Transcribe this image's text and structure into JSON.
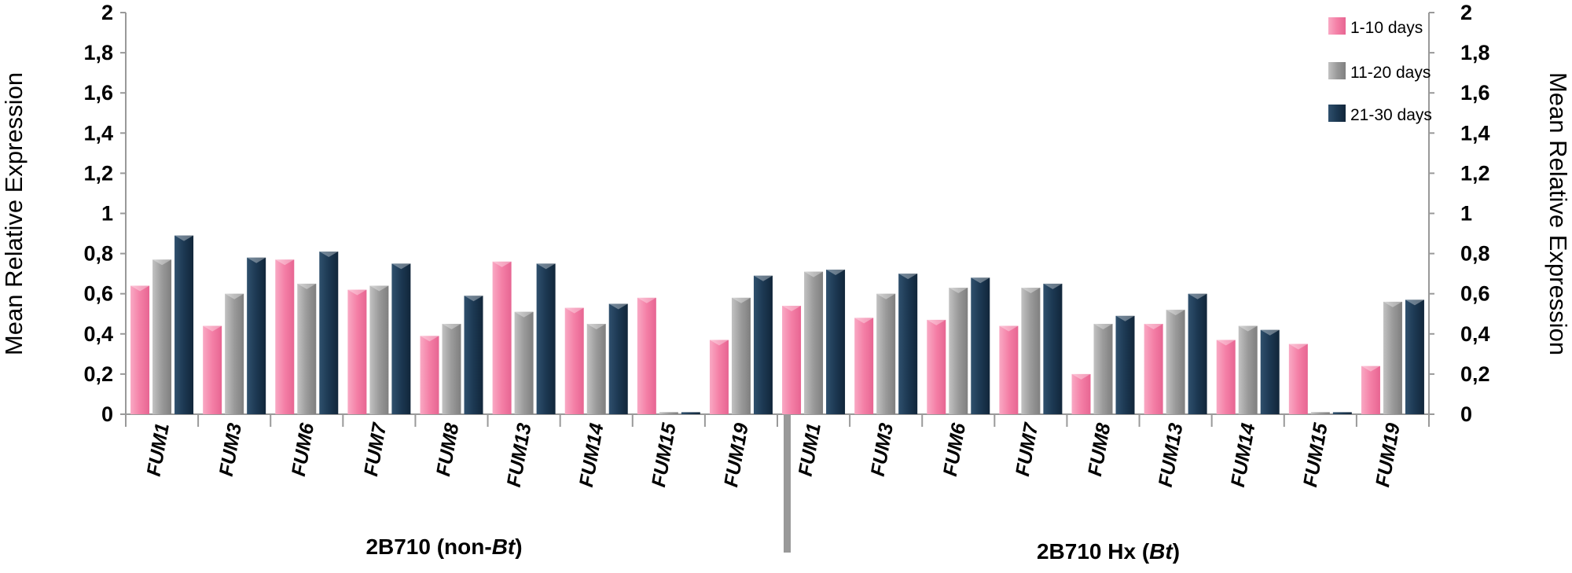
{
  "chart_data": {
    "type": "bar",
    "ylabel_left": "Mean Relative Expression",
    "ylabel_right": "Mean Relative Expression",
    "ylim": [
      0,
      2
    ],
    "ytick_values": [
      0,
      0.2,
      0.4,
      0.6,
      0.8,
      1,
      1.2,
      1.4,
      1.6,
      1.8,
      2
    ],
    "ytick_labels": [
      "0",
      "0,2",
      "0,4",
      "0,6",
      "0,8",
      "1",
      "1,2",
      "1,4",
      "1,6",
      "1,8",
      "2"
    ],
    "grid": false,
    "legend_position": "top-right",
    "categories": [
      "FUM1",
      "FUM3",
      "FUM6",
      "FUM7",
      "FUM8",
      "FUM13",
      "FUM14",
      "FUM15",
      "FUM19",
      "FUM1",
      "FUM3",
      "FUM6",
      "FUM7",
      "FUM8",
      "FUM13",
      "FUM14",
      "FUM15",
      "FUM19"
    ],
    "groups": [
      {
        "label_prefix": "2B710 (non-",
        "label_italic": "Bt",
        "label_suffix": ")",
        "start": 0,
        "count": 9
      },
      {
        "label_prefix": "2B710 Hx (",
        "label_italic": "Bt",
        "label_suffix": ")",
        "start": 9,
        "count": 9
      }
    ],
    "series": [
      {
        "name": "1-10 days",
        "color": "#f47fa6",
        "values": [
          0.64,
          0.44,
          0.77,
          0.62,
          0.39,
          0.76,
          0.53,
          0.58,
          0.37,
          0.54,
          0.48,
          0.47,
          0.44,
          0.2,
          0.45,
          0.37,
          0.35,
          0.24
        ]
      },
      {
        "name": "11-20 days",
        "color": "#9a9a9a",
        "values": [
          0.77,
          0.6,
          0.65,
          0.64,
          0.45,
          0.51,
          0.45,
          0.01,
          0.58,
          0.71,
          0.6,
          0.63,
          0.63,
          0.45,
          0.52,
          0.44,
          0.01,
          0.56
        ]
      },
      {
        "name": "21-30 days",
        "color": "#1c3852",
        "values": [
          0.89,
          0.78,
          0.81,
          0.75,
          0.59,
          0.75,
          0.55,
          0.01,
          0.69,
          0.72,
          0.7,
          0.68,
          0.65,
          0.49,
          0.6,
          0.42,
          0.01,
          0.57
        ]
      }
    ]
  }
}
